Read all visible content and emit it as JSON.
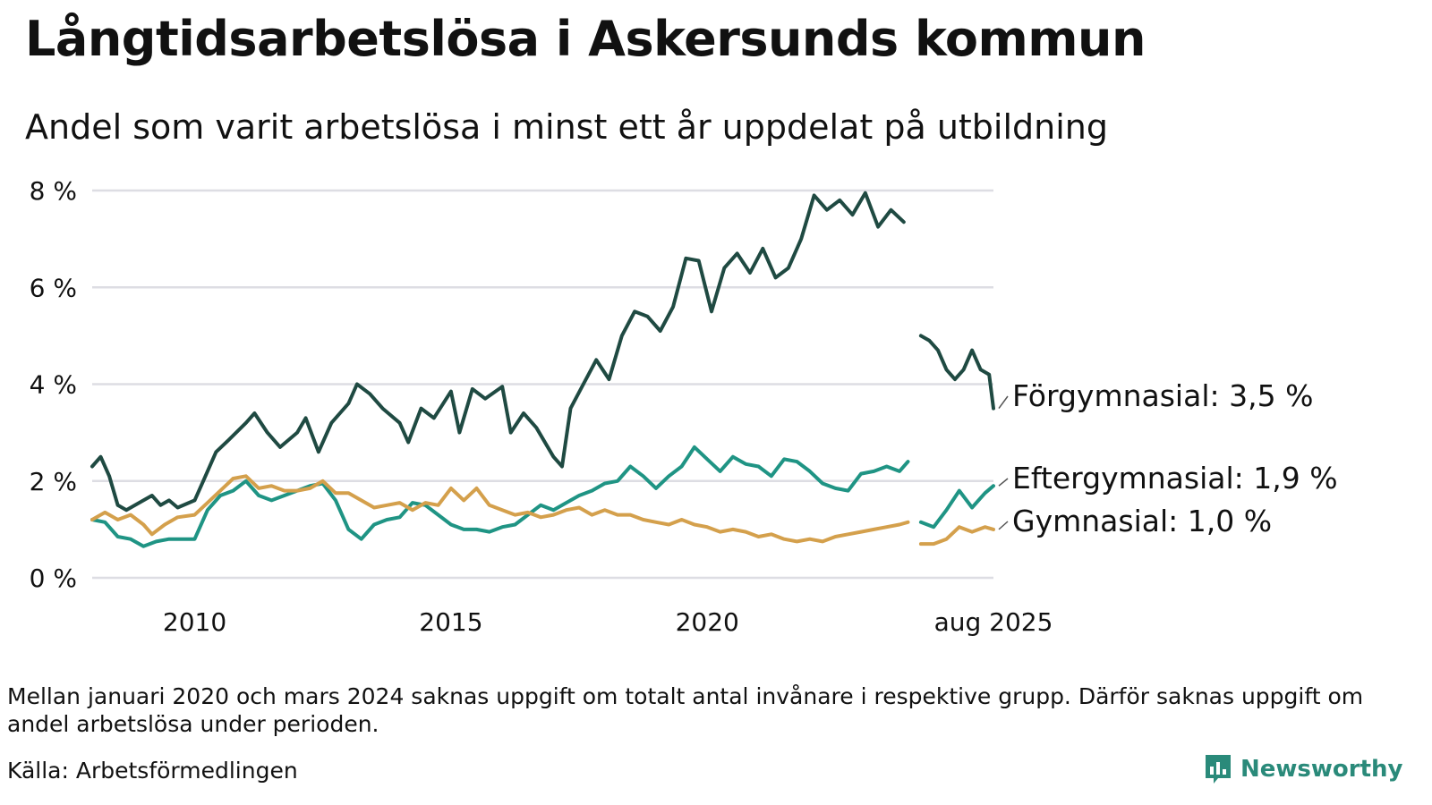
{
  "title": "Långtidsarbetslösa i Askersunds kommun",
  "subtitle": "Andel som varit arbetslösa i minst ett år uppdelat på utbildning",
  "footnote": "Mellan januari 2020 och mars 2024 saknas uppgift om totalt antal invånare i respektive grupp. Därför saknas uppgift om andel arbetslösa under perioden.",
  "source": "Källa: Arbetsförmedlingen",
  "brand": "Newsworthy",
  "colors": {
    "forgymnasial": "#1f4a42",
    "eftergymnasial": "#1f9484",
    "gymnasial": "#d4a04c",
    "grid": "#dddde3",
    "brand": "#2a8a7a"
  },
  "chart_data": {
    "type": "line",
    "title": "Långtidsarbetslösa i Askersunds kommun",
    "subtitle": "Andel som varit arbetslösa i minst ett år uppdelat på utbildning",
    "xlabel": "",
    "ylabel": "",
    "xlim": [
      "2008-01",
      "2025-08"
    ],
    "ylim": [
      0,
      8
    ],
    "y_ticks": [
      {
        "value": 0,
        "label": "0 %"
      },
      {
        "value": 2,
        "label": "2 %"
      },
      {
        "value": 4,
        "label": "4 %"
      },
      {
        "value": 6,
        "label": "6 %"
      },
      {
        "value": 8,
        "label": "8 %"
      }
    ],
    "x_ticks": [
      {
        "value": "2010-01",
        "label": "2010"
      },
      {
        "value": "2015-01",
        "label": "2015"
      },
      {
        "value": "2020-01",
        "label": "2020"
      },
      {
        "value": "2025-08",
        "label": "aug 2025"
      }
    ],
    "grid": "horizontal",
    "legend": "direct labels at right end of lines",
    "series": [
      {
        "name": "Förgymnasial",
        "end_label": "Förgymnasial: 3,5 %",
        "color": "#1f4a42",
        "segments": [
          [
            [
              "2008-01",
              2.3
            ],
            [
              "2008-03",
              2.5
            ],
            [
              "2008-05",
              2.1
            ],
            [
              "2008-07",
              1.5
            ],
            [
              "2008-09",
              1.4
            ],
            [
              "2009-01",
              1.6
            ],
            [
              "2009-03",
              1.7
            ],
            [
              "2009-05",
              1.5
            ],
            [
              "2009-07",
              1.6
            ],
            [
              "2009-09",
              1.45
            ],
            [
              "2010-01",
              1.6
            ],
            [
              "2010-03",
              2.0
            ],
            [
              "2010-06",
              2.6
            ],
            [
              "2010-09",
              2.85
            ],
            [
              "2011-01",
              3.2
            ],
            [
              "2011-03",
              3.4
            ],
            [
              "2011-06",
              3.0
            ],
            [
              "2011-09",
              2.7
            ],
            [
              "2012-01",
              3.0
            ],
            [
              "2012-03",
              3.3
            ],
            [
              "2012-06",
              2.6
            ],
            [
              "2012-09",
              3.2
            ],
            [
              "2013-01",
              3.6
            ],
            [
              "2013-03",
              4.0
            ],
            [
              "2013-06",
              3.8
            ],
            [
              "2013-09",
              3.5
            ],
            [
              "2014-01",
              3.2
            ],
            [
              "2014-03",
              2.8
            ],
            [
              "2014-06",
              3.5
            ],
            [
              "2014-09",
              3.3
            ],
            [
              "2015-01",
              3.85
            ],
            [
              "2015-03",
              3.0
            ],
            [
              "2015-06",
              3.9
            ],
            [
              "2015-09",
              3.7
            ],
            [
              "2016-01",
              3.95
            ],
            [
              "2016-03",
              3.0
            ],
            [
              "2016-06",
              3.4
            ],
            [
              "2016-09",
              3.1
            ],
            [
              "2017-01",
              2.5
            ],
            [
              "2017-03",
              2.3
            ],
            [
              "2017-05",
              3.5
            ],
            [
              "2017-08",
              4.0
            ],
            [
              "2017-11",
              4.5
            ],
            [
              "2018-02",
              4.1
            ],
            [
              "2018-05",
              5.0
            ],
            [
              "2018-08",
              5.5
            ],
            [
              "2018-11",
              5.4
            ],
            [
              "2019-02",
              5.1
            ],
            [
              "2019-05",
              5.6
            ],
            [
              "2019-08",
              6.6
            ],
            [
              "2019-11",
              6.55
            ],
            [
              "2020-02",
              5.5
            ],
            [
              "2020-05",
              6.4
            ],
            [
              "2020-08",
              6.7
            ],
            [
              "2020-11",
              6.3
            ],
            [
              "2021-02",
              6.8
            ],
            [
              "2021-05",
              6.2
            ],
            [
              "2021-08",
              6.4
            ],
            [
              "2021-11",
              7.0
            ],
            [
              "2022-02",
              7.9
            ],
            [
              "2022-05",
              7.6
            ],
            [
              "2022-08",
              7.8
            ],
            [
              "2022-11",
              7.5
            ],
            [
              "2023-02",
              7.95
            ],
            [
              "2023-05",
              7.25
            ],
            [
              "2023-08",
              7.6
            ],
            [
              "2023-11",
              7.35
            ]
          ],
          [
            [
              "2024-03",
              5.0
            ],
            [
              "2024-05",
              4.9
            ],
            [
              "2024-07",
              4.7
            ],
            [
              "2024-09",
              4.3
            ],
            [
              "2024-11",
              4.1
            ],
            [
              "2025-01",
              4.3
            ],
            [
              "2025-03",
              4.7
            ],
            [
              "2025-05",
              4.3
            ],
            [
              "2025-07",
              4.2
            ],
            [
              "2025-08",
              3.5
            ]
          ]
        ]
      },
      {
        "name": "Eftergymnasial",
        "end_label": "Eftergymnasial: 1,9 %",
        "color": "#1f9484",
        "segments": [
          [
            [
              "2008-01",
              1.2
            ],
            [
              "2008-04",
              1.15
            ],
            [
              "2008-07",
              0.85
            ],
            [
              "2008-10",
              0.8
            ],
            [
              "2009-01",
              0.65
            ],
            [
              "2009-04",
              0.75
            ],
            [
              "2009-07",
              0.8
            ],
            [
              "2010-01",
              0.8
            ],
            [
              "2010-04",
              1.4
            ],
            [
              "2010-07",
              1.7
            ],
            [
              "2010-10",
              1.8
            ],
            [
              "2011-01",
              2.0
            ],
            [
              "2011-04",
              1.7
            ],
            [
              "2011-07",
              1.6
            ],
            [
              "2012-01",
              1.8
            ],
            [
              "2012-04",
              1.9
            ],
            [
              "2012-07",
              1.95
            ],
            [
              "2012-10",
              1.6
            ],
            [
              "2013-01",
              1.0
            ],
            [
              "2013-04",
              0.8
            ],
            [
              "2013-07",
              1.1
            ],
            [
              "2013-10",
              1.2
            ],
            [
              "2014-01",
              1.25
            ],
            [
              "2014-04",
              1.55
            ],
            [
              "2014-07",
              1.5
            ],
            [
              "2014-10",
              1.3
            ],
            [
              "2015-01",
              1.1
            ],
            [
              "2015-04",
              1.0
            ],
            [
              "2015-07",
              1.0
            ],
            [
              "2015-10",
              0.95
            ],
            [
              "2016-01",
              1.05
            ],
            [
              "2016-04",
              1.1
            ],
            [
              "2016-07",
              1.3
            ],
            [
              "2016-10",
              1.5
            ],
            [
              "2017-01",
              1.4
            ],
            [
              "2017-04",
              1.55
            ],
            [
              "2017-07",
              1.7
            ],
            [
              "2017-10",
              1.8
            ],
            [
              "2018-01",
              1.95
            ],
            [
              "2018-04",
              2.0
            ],
            [
              "2018-07",
              2.3
            ],
            [
              "2018-10",
              2.1
            ],
            [
              "2019-01",
              1.85
            ],
            [
              "2019-04",
              2.1
            ],
            [
              "2019-07",
              2.3
            ],
            [
              "2019-10",
              2.7
            ],
            [
              "2020-01",
              2.45
            ],
            [
              "2020-04",
              2.2
            ],
            [
              "2020-07",
              2.5
            ],
            [
              "2020-10",
              2.35
            ],
            [
              "2021-01",
              2.3
            ],
            [
              "2021-04",
              2.1
            ],
            [
              "2021-07",
              2.45
            ],
            [
              "2021-10",
              2.4
            ],
            [
              "2022-01",
              2.2
            ],
            [
              "2022-04",
              1.95
            ],
            [
              "2022-07",
              1.85
            ],
            [
              "2022-10",
              1.8
            ],
            [
              "2023-01",
              2.15
            ],
            [
              "2023-04",
              2.2
            ],
            [
              "2023-07",
              2.3
            ],
            [
              "2023-10",
              2.2
            ],
            [
              "2023-12",
              2.4
            ]
          ],
          [
            [
              "2024-03",
              1.15
            ],
            [
              "2024-06",
              1.05
            ],
            [
              "2024-09",
              1.4
            ],
            [
              "2024-12",
              1.8
            ],
            [
              "2025-03",
              1.45
            ],
            [
              "2025-06",
              1.75
            ],
            [
              "2025-08",
              1.9
            ]
          ]
        ]
      },
      {
        "name": "Gymnasial",
        "end_label": "Gymnasial: 1,0 %",
        "color": "#d4a04c",
        "segments": [
          [
            [
              "2008-01",
              1.2
            ],
            [
              "2008-04",
              1.35
            ],
            [
              "2008-07",
              1.2
            ],
            [
              "2008-10",
              1.3
            ],
            [
              "2009-01",
              1.1
            ],
            [
              "2009-03",
              0.9
            ],
            [
              "2009-06",
              1.1
            ],
            [
              "2009-09",
              1.25
            ],
            [
              "2010-01",
              1.3
            ],
            [
              "2010-04",
              1.55
            ],
            [
              "2010-07",
              1.8
            ],
            [
              "2010-10",
              2.05
            ],
            [
              "2011-01",
              2.1
            ],
            [
              "2011-04",
              1.85
            ],
            [
              "2011-07",
              1.9
            ],
            [
              "2011-10",
              1.8
            ],
            [
              "2012-01",
              1.8
            ],
            [
              "2012-04",
              1.85
            ],
            [
              "2012-07",
              2.0
            ],
            [
              "2012-10",
              1.75
            ],
            [
              "2013-01",
              1.75
            ],
            [
              "2013-04",
              1.6
            ],
            [
              "2013-07",
              1.45
            ],
            [
              "2013-10",
              1.5
            ],
            [
              "2014-01",
              1.55
            ],
            [
              "2014-04",
              1.4
            ],
            [
              "2014-07",
              1.55
            ],
            [
              "2014-10",
              1.5
            ],
            [
              "2015-01",
              1.85
            ],
            [
              "2015-04",
              1.6
            ],
            [
              "2015-07",
              1.85
            ],
            [
              "2015-10",
              1.5
            ],
            [
              "2016-01",
              1.4
            ],
            [
              "2016-04",
              1.3
            ],
            [
              "2016-07",
              1.35
            ],
            [
              "2016-10",
              1.25
            ],
            [
              "2017-01",
              1.3
            ],
            [
              "2017-04",
              1.4
            ],
            [
              "2017-07",
              1.45
            ],
            [
              "2017-10",
              1.3
            ],
            [
              "2018-01",
              1.4
            ],
            [
              "2018-04",
              1.3
            ],
            [
              "2018-07",
              1.3
            ],
            [
              "2018-10",
              1.2
            ],
            [
              "2019-01",
              1.15
            ],
            [
              "2019-04",
              1.1
            ],
            [
              "2019-07",
              1.2
            ],
            [
              "2019-10",
              1.1
            ],
            [
              "2020-01",
              1.05
            ],
            [
              "2020-04",
              0.95
            ],
            [
              "2020-07",
              1.0
            ],
            [
              "2020-10",
              0.95
            ],
            [
              "2021-01",
              0.85
            ],
            [
              "2021-04",
              0.9
            ],
            [
              "2021-07",
              0.8
            ],
            [
              "2021-10",
              0.75
            ],
            [
              "2022-01",
              0.8
            ],
            [
              "2022-04",
              0.75
            ],
            [
              "2022-07",
              0.85
            ],
            [
              "2022-10",
              0.9
            ],
            [
              "2023-01",
              0.95
            ],
            [
              "2023-04",
              1.0
            ],
            [
              "2023-07",
              1.05
            ],
            [
              "2023-10",
              1.1
            ],
            [
              "2023-12",
              1.15
            ]
          ],
          [
            [
              "2024-03",
              0.7
            ],
            [
              "2024-06",
              0.7
            ],
            [
              "2024-09",
              0.8
            ],
            [
              "2024-12",
              1.05
            ],
            [
              "2025-03",
              0.95
            ],
            [
              "2025-06",
              1.05
            ],
            [
              "2025-08",
              1.0
            ]
          ]
        ]
      }
    ]
  }
}
